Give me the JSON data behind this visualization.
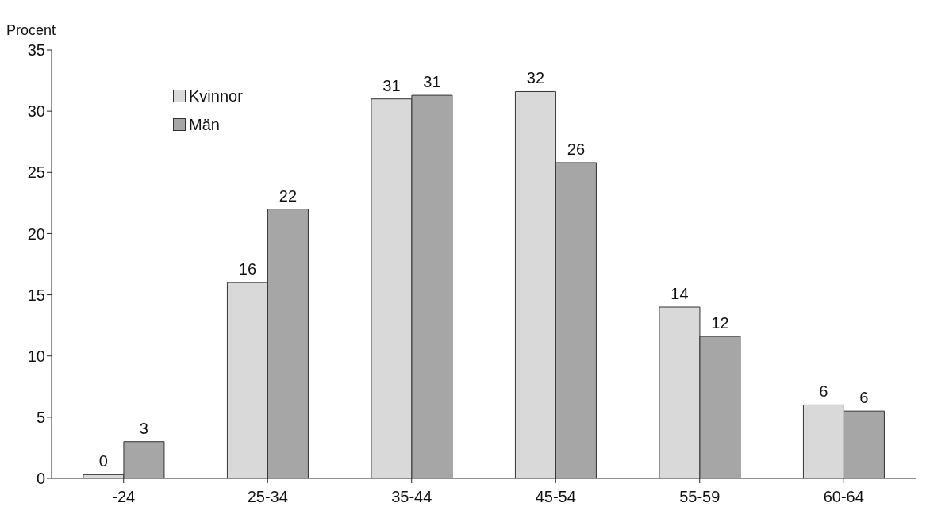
{
  "chart_data": {
    "type": "bar",
    "ylabel": "Procent",
    "categories": [
      "-24",
      "25-34",
      "35-44",
      "45-54",
      "55-59",
      "60-64"
    ],
    "series": [
      {
        "name": "Kvinnor",
        "color": "#d9d9d9",
        "values": [
          0.3,
          16,
          31,
          31.6,
          14,
          6
        ],
        "value_labels": [
          "0",
          "16",
          "31",
          "32",
          "14",
          "6"
        ]
      },
      {
        "name": "Män",
        "color": "#a6a6a6",
        "values": [
          3,
          22,
          31.3,
          25.8,
          11.6,
          5.5
        ],
        "value_labels": [
          "3",
          "22",
          "31",
          "26",
          "12",
          "6"
        ]
      }
    ],
    "ylim": [
      0,
      35
    ],
    "yticks": [
      0,
      5,
      10,
      15,
      20,
      25,
      30,
      35
    ],
    "grid": false,
    "legend": "top left"
  }
}
